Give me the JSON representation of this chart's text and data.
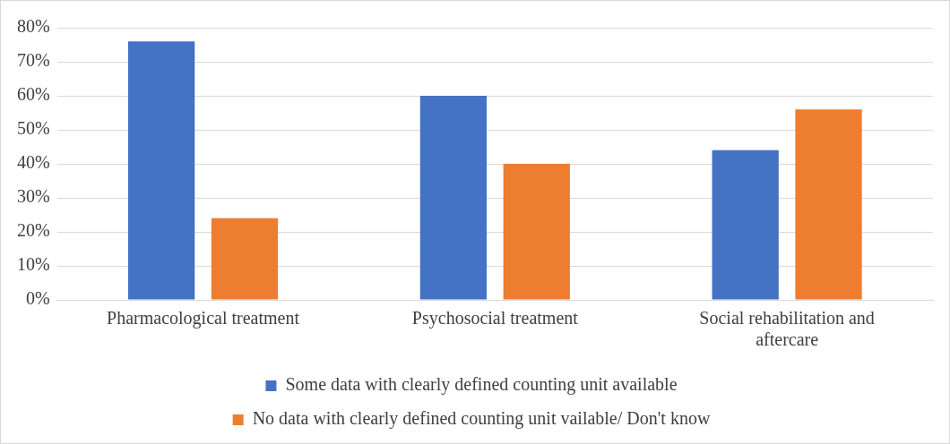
{
  "chart_data": {
    "type": "bar",
    "categories": [
      "Pharmacological treatment",
      "Psychosocial treatment",
      "Social rehabilitation and aftercare"
    ],
    "series": [
      {
        "name": "Some data with clearly defined counting unit available",
        "color": "#4472c4",
        "values": [
          76,
          60,
          44
        ]
      },
      {
        "name": "No data with clearly defined counting unit vailable/ Don't know",
        "color": "#ed7d31",
        "values": [
          24,
          40,
          56
        ]
      }
    ],
    "ylim": [
      0,
      80
    ],
    "yticks": [
      {
        "value": 0,
        "label": "0%"
      },
      {
        "value": 10,
        "label": "10%"
      },
      {
        "value": 20,
        "label": "20%"
      },
      {
        "value": 30,
        "label": "30%"
      },
      {
        "value": 40,
        "label": "40%"
      },
      {
        "value": 50,
        "label": "50%"
      },
      {
        "value": 60,
        "label": "60%"
      },
      {
        "value": 70,
        "label": "70%"
      },
      {
        "value": 80,
        "label": "80%"
      }
    ],
    "grid": "y",
    "legend": "bottom"
  }
}
